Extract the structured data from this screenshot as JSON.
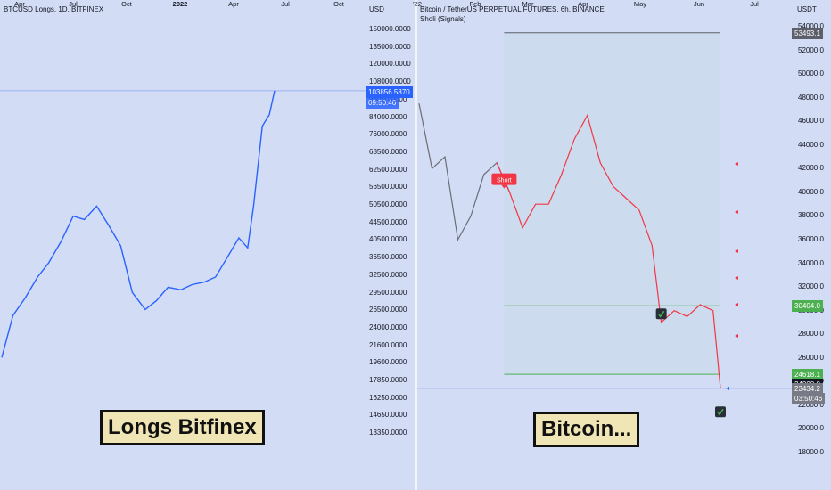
{
  "left": {
    "title": "BTCUSD Longs, 1D, BITFINEX",
    "currency": "USD",
    "caption": "Longs Bitfinex",
    "last_price": "103856.5870",
    "countdown": "09:50:46",
    "y_ticks": [
      "150000.0000",
      "135000.0000",
      "120000.0000",
      "108000.0000",
      "96000.0000",
      "84000.0000",
      "76000.0000",
      "68500.0000",
      "62500.0000",
      "56500.0000",
      "50500.0000",
      "44500.0000",
      "40500.0000",
      "36500.0000",
      "32500.0000",
      "29500.0000",
      "26500.0000",
      "24000.0000",
      "21600.0000",
      "19600.0000",
      "17850.0000",
      "16250.0000",
      "14650.0000",
      "13350.0000"
    ],
    "x_ticks": [
      {
        "label": "Apr",
        "bold": false
      },
      {
        "label": "Jul",
        "bold": false
      },
      {
        "label": "Oct",
        "bold": false
      },
      {
        "label": "2022",
        "bold": true
      },
      {
        "label": "Apr",
        "bold": false
      },
      {
        "label": "Jul",
        "bold": false
      },
      {
        "label": "Oct",
        "bold": false
      }
    ],
    "line_color": "#2962ff",
    "label_color": "#2962ff"
  },
  "right": {
    "title": "Bitcoin / TetherUS PERPETUAL FUTURES, 6h, BINANCE",
    "indicator": "Sholi (Signals)",
    "currency": "USDT",
    "caption": "Bitcoin...",
    "signal_label": "Short",
    "y_ticks": [
      "54000.0",
      "52000.0",
      "50000.0",
      "48000.0",
      "46000.0",
      "44000.0",
      "42000.0",
      "40000.0",
      "38000.0",
      "36000.0",
      "34000.0",
      "32000.0",
      "30000.0",
      "28000.0",
      "26000.0",
      "24000.0",
      "22000.0",
      "20000.0",
      "18000.0"
    ],
    "x_ticks": [
      "'22",
      "Feb",
      "Mar",
      "Apr",
      "May",
      "Jun",
      "Jul"
    ],
    "price_labels": [
      {
        "value": "53493.1",
        "color": "#5d606b"
      },
      {
        "value": "30404.0",
        "color": "#4caf50"
      },
      {
        "value": "24618.1",
        "color": "#4caf50"
      },
      {
        "value": "24000.0",
        "color": "#131722"
      },
      {
        "value": "23434.2",
        "color": "#787b86"
      },
      {
        "value": "03:50:46",
        "color": "#787b86"
      }
    ],
    "colors": {
      "bear": "#f23645",
      "neutral": "#6b6e78",
      "tp": "#4caf50",
      "target_line": "#5d606b",
      "fill": "#c9dbe8"
    }
  },
  "chart_data": [
    {
      "type": "line",
      "title": "BTCUSD Longs, 1D, BITFINEX",
      "xlabel": "",
      "ylabel": "",
      "y_scale": "log",
      "ylim": [
        13350,
        150000
      ],
      "x": [
        "2021-03-01",
        "2021-03-20",
        "2021-04-10",
        "2021-05-01",
        "2021-05-20",
        "2021-06-10",
        "2021-07-01",
        "2021-07-20",
        "2021-08-10",
        "2021-09-01",
        "2021-09-20",
        "2021-10-10",
        "2021-11-01",
        "2021-11-20",
        "2021-12-10",
        "2022-01-01",
        "2022-01-20",
        "2022-02-10",
        "2022-03-01",
        "2022-03-20",
        "2022-04-10",
        "2022-04-25",
        "2022-05-05",
        "2022-05-20",
        "2022-06-01",
        "2022-06-10"
      ],
      "values": [
        21000,
        27000,
        30000,
        34000,
        37000,
        42000,
        49000,
        48000,
        52000,
        46000,
        41000,
        31000,
        28000,
        29500,
        32000,
        31500,
        32500,
        33000,
        34000,
        38000,
        43000,
        40500,
        52000,
        84000,
        90000,
        103856
      ]
    },
    {
      "type": "line",
      "title": "Bitcoin / TetherUS PERPETUAL FUTURES, 6h, BINANCE",
      "xlabel": "",
      "ylabel": "",
      "ylim": [
        17000,
        55000
      ],
      "x": [
        "2022-01-01",
        "2022-01-08",
        "2022-01-15",
        "2022-01-22",
        "2022-01-29",
        "2022-02-05",
        "2022-02-12",
        "2022-02-19",
        "2022-02-26",
        "2022-03-05",
        "2022-03-12",
        "2022-03-19",
        "2022-03-26",
        "2022-04-02",
        "2022-04-09",
        "2022-04-16",
        "2022-04-23",
        "2022-04-30",
        "2022-05-07",
        "2022-05-12",
        "2022-05-19",
        "2022-05-26",
        "2022-06-02",
        "2022-06-09",
        "2022-06-13"
      ],
      "values": [
        47500,
        42000,
        43000,
        36000,
        38000,
        41500,
        42500,
        40000,
        37000,
        39000,
        39000,
        41500,
        44500,
        46500,
        42500,
        40500,
        39500,
        38500,
        35500,
        29000,
        30000,
        29500,
        30500,
        30000,
        23434
      ],
      "annotations": [
        {
          "label": "Short",
          "x": "2022-02-16",
          "y": 41000
        },
        {
          "label": "TP",
          "x": "2022-05-12",
          "y": 30404
        },
        {
          "label": "TP",
          "x": "2022-06-13",
          "y": 22500
        }
      ],
      "levels": [
        {
          "name": "target",
          "value": 53493.1
        },
        {
          "name": "tp1",
          "value": 30404.0
        },
        {
          "name": "tp2",
          "value": 24618.1
        }
      ]
    }
  ]
}
